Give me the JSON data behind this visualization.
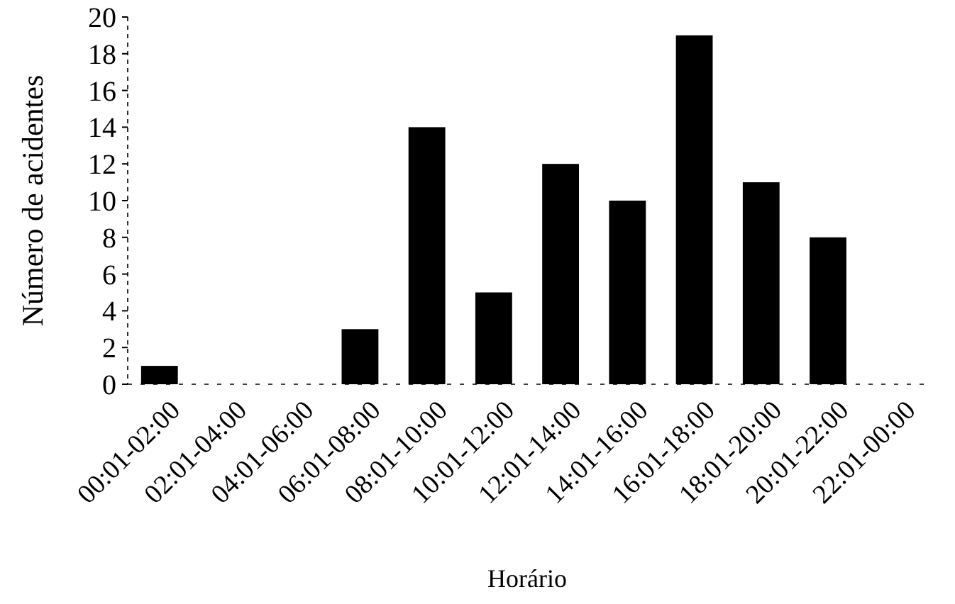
{
  "chart_data": {
    "type": "bar",
    "categories": [
      "00:01-02:00",
      "02:01-04:00",
      "04:01-06:00",
      "06:01-08:00",
      "08:01-10:00",
      "10:01-12:00",
      "12:01-14:00",
      "14:01-16:00",
      "16:01-18:00",
      "18:01-20:00",
      "20:01-22:00",
      "22:01-00:00"
    ],
    "values": [
      1,
      0,
      0,
      3,
      14,
      5,
      12,
      10,
      19,
      11,
      8,
      0
    ],
    "color": "#000000",
    "xlabel": "Horário",
    "ylabel": "Número de acidentes",
    "ylim": [
      0,
      20
    ],
    "yticks": [
      0,
      2,
      4,
      6,
      8,
      10,
      12,
      14,
      16,
      18,
      20
    ],
    "grid": false
  }
}
